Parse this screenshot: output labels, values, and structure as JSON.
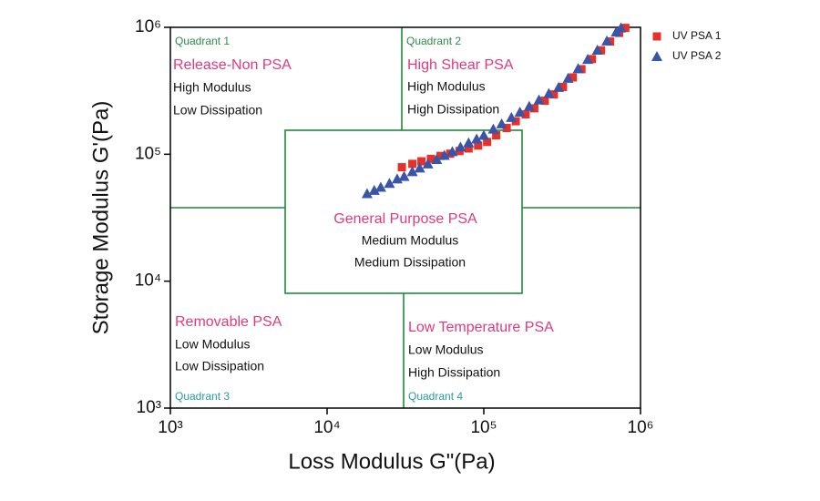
{
  "chart_data": {
    "type": "scatter",
    "x_label": "Loss Modulus G\"(Pa)",
    "y_label": "Storage Modulus G'(Pa)",
    "xlim": [
      1000,
      1000000
    ],
    "ylim": [
      1000,
      1000000
    ],
    "log_x": true,
    "log_y": true,
    "xticks": [
      {
        "value": 1000,
        "label": "10³"
      },
      {
        "value": 10000,
        "label": "10⁴"
      },
      {
        "value": 100000,
        "label": "10⁵"
      },
      {
        "value": 1000000,
        "label": "10⁶"
      }
    ],
    "yticks": [
      {
        "value": 1000,
        "label": "10³"
      },
      {
        "value": 10000,
        "label": "10⁴"
      },
      {
        "value": 100000,
        "label": "10⁵"
      },
      {
        "value": 1000000,
        "label": "10⁶"
      }
    ],
    "legend": "outside upper right",
    "series": [
      {
        "name": "UV PSA 1",
        "color": "#e8302a",
        "marker": "square",
        "x": [
          30000,
          35000,
          40000,
          46000,
          53000,
          61000,
          70000,
          80000,
          92000,
          105000,
          120000,
          140000,
          160000,
          185000,
          210000,
          245000,
          280000,
          320000,
          370000,
          420000,
          490000,
          560000,
          640000,
          730000,
          800000
        ],
        "values": [
          79000,
          84000,
          88000,
          92000,
          97000,
          101000,
          106000,
          111000,
          117000,
          125000,
          141000,
          161000,
          182000,
          206000,
          230000,
          264000,
          296000,
          339000,
          403000,
          468000,
          562000,
          659000,
          773000,
          904000,
          990000
        ]
      },
      {
        "name": "UV PSA 2",
        "color": "#3a55a8",
        "marker": "triangle",
        "x": [
          18000,
          20000,
          22000,
          25000,
          28000,
          31000,
          35000,
          39000,
          44000,
          50000,
          56000,
          63000,
          71000,
          80000,
          90000,
          100000,
          115000,
          130000,
          150000,
          170000,
          195000,
          225000,
          260000,
          300000,
          345000,
          400000,
          460000,
          530000,
          610000,
          700000,
          750000
        ],
        "values": [
          49000,
          52000,
          55000,
          59000,
          64000,
          67000,
          73000,
          78000,
          84000,
          91000,
          98000,
          105000,
          114000,
          123000,
          132000,
          141000,
          158000,
          174000,
          195000,
          215000,
          239000,
          268000,
          301000,
          337000,
          397000,
          473000,
          560000,
          661000,
          782000,
          920000,
          990000
        ]
      }
    ]
  },
  "annotations": [
    "Quadrant 1",
    "Release-Non PSA",
    "High Modulus",
    "Low Dissipation",
    "Quadrant 2",
    "High Shear PSA",
    "High Modulus",
    "High Dissipation",
    "General Purpose PSA",
    "Medium Modulus",
    "Medium Dissipation",
    "Removable PSA",
    "Low Modulus",
    "Low Dissipation",
    "Quadrant 3",
    "Low Temperature PSA",
    "Low Modulus",
    "High Dissipation",
    "Quadrant 4"
  ]
}
